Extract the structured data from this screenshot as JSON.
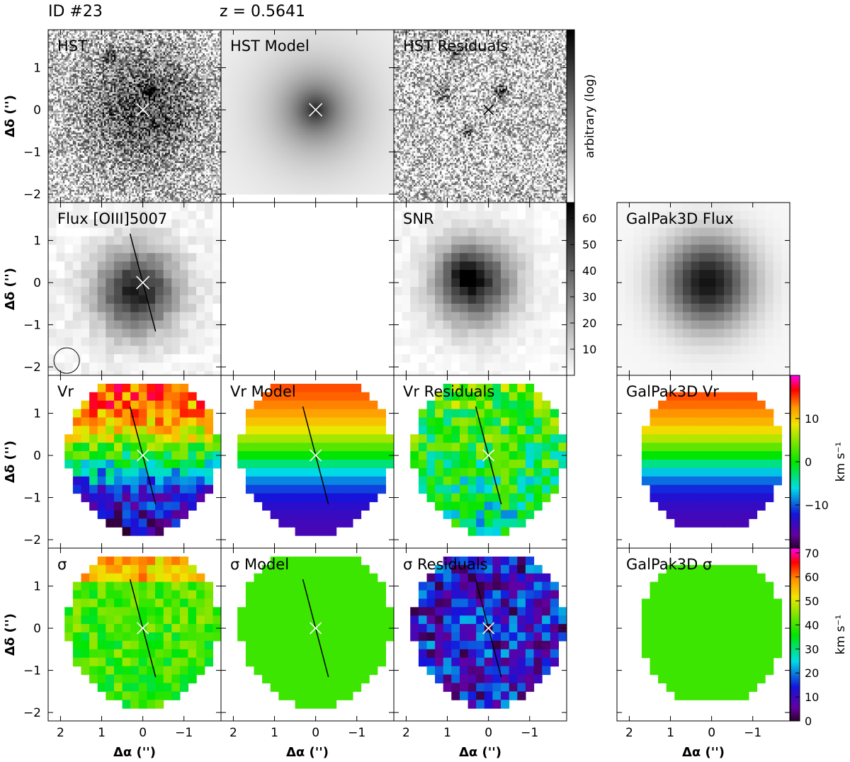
{
  "header": {
    "id": "ID #23",
    "redshift": "z = 0.5641"
  },
  "chart_data": {
    "type": "heatmap",
    "panel_titles": {
      "hst": "HST",
      "hst_model": "HST Model",
      "hst_residuals": "HST Residuals",
      "flux": "Flux [OIII]5007",
      "snr": "SNR",
      "galpak_flux": "GalPak3D Flux",
      "vr": "Vr",
      "vr_model": "Vr Model",
      "vr_residuals": "Vr Residuals",
      "galpak_vr": "GalPak3D Vr",
      "sigma": "σ",
      "sigma_model": "σ Model",
      "sigma_residuals": "σ Residuals",
      "galpak_sigma": "GalPak3D σ"
    },
    "xlabel": "Δα ('')",
    "ylabel": "Δδ ('')",
    "x_range": [
      2.3,
      -1.9
    ],
    "y_range": [
      -2.2,
      1.9
    ],
    "x_ticks": [
      "2",
      "1",
      "0",
      "−1"
    ],
    "x_tick_values": [
      2,
      1,
      0,
      -1
    ],
    "y_ticks": [
      "1",
      "0",
      "−1",
      "−2"
    ],
    "y_tick_values": [
      1,
      0,
      -1,
      -2
    ],
    "hst_colorbar": {
      "label": "arbitrary (log)"
    },
    "snr_colorbar": {
      "ticks": [
        10,
        20,
        30,
        40,
        50,
        60
      ],
      "range": [
        0,
        66
      ]
    },
    "vr_colorbar": {
      "ticks": [
        10,
        0,
        -10
      ],
      "tick_labels": [
        "10",
        "0",
        "−10"
      ],
      "range": [
        -20,
        20
      ],
      "label": "km s⁻¹"
    },
    "sigma_colorbar": {
      "ticks": [
        0,
        10,
        20,
        30,
        40,
        50,
        60,
        70
      ],
      "range": [
        0,
        72
      ],
      "label": "km s⁻¹"
    },
    "major_axis_pa_deg": 165,
    "vr_gradient_km_s": [
      16,
      -16
    ],
    "sigma_model_km_s": 40
  }
}
